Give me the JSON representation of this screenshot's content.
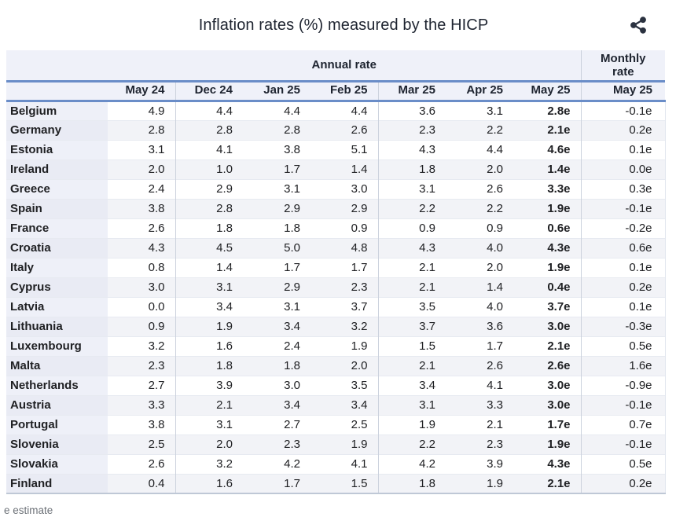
{
  "header": {
    "title": "Inflation rates (%) measured by the HICP"
  },
  "table": {
    "annual_group_label": "Annual rate",
    "monthly_group_label": "Monthly rate",
    "month_columns": [
      "May 24",
      "Dec 24",
      "Jan 25",
      "Feb 25",
      "Mar 25",
      "Apr 25",
      "May 25"
    ],
    "monthly_column": "May 25"
  },
  "footnote": "e estimate",
  "colors": {
    "accent_line": "#6a8dc8",
    "header_bg": "#eff1f9",
    "country_col_bg": "#eef0f8",
    "row_alt_bg": "#f2f3f7",
    "divider": "#ccd2dd",
    "icon": "#2b3240",
    "title_text": "#1e2430",
    "footnote_text": "#6d7278"
  },
  "chart_data": {
    "type": "table",
    "title": "Inflation rates (%) measured by the HICP",
    "column_groups": [
      "Annual rate",
      "Monthly rate"
    ],
    "columns": [
      "May 24",
      "Dec 24",
      "Jan 25",
      "Feb 25",
      "Mar 25",
      "Apr 25",
      "May 25"
    ],
    "monthly_column": "May 25",
    "footnote": "e estimate",
    "rows": [
      {
        "country": "Belgium",
        "annual": [
          "4.9",
          "4.4",
          "4.4",
          "4.4",
          "3.6",
          "3.1",
          "2.8e"
        ],
        "monthly": "-0.1e"
      },
      {
        "country": "Germany",
        "annual": [
          "2.8",
          "2.8",
          "2.8",
          "2.6",
          "2.3",
          "2.2",
          "2.1e"
        ],
        "monthly": "0.2e"
      },
      {
        "country": "Estonia",
        "annual": [
          "3.1",
          "4.1",
          "3.8",
          "5.1",
          "4.3",
          "4.4",
          "4.6e"
        ],
        "monthly": "0.1e"
      },
      {
        "country": "Ireland",
        "annual": [
          "2.0",
          "1.0",
          "1.7",
          "1.4",
          "1.8",
          "2.0",
          "1.4e"
        ],
        "monthly": "0.0e"
      },
      {
        "country": "Greece",
        "annual": [
          "2.4",
          "2.9",
          "3.1",
          "3.0",
          "3.1",
          "2.6",
          "3.3e"
        ],
        "monthly": "0.3e"
      },
      {
        "country": "Spain",
        "annual": [
          "3.8",
          "2.8",
          "2.9",
          "2.9",
          "2.2",
          "2.2",
          "1.9e"
        ],
        "monthly": "-0.1e"
      },
      {
        "country": "France",
        "annual": [
          "2.6",
          "1.8",
          "1.8",
          "0.9",
          "0.9",
          "0.9",
          "0.6e"
        ],
        "monthly": "-0.2e"
      },
      {
        "country": "Croatia",
        "annual": [
          "4.3",
          "4.5",
          "5.0",
          "4.8",
          "4.3",
          "4.0",
          "4.3e"
        ],
        "monthly": "0.6e"
      },
      {
        "country": "Italy",
        "annual": [
          "0.8",
          "1.4",
          "1.7",
          "1.7",
          "2.1",
          "2.0",
          "1.9e"
        ],
        "monthly": "0.1e"
      },
      {
        "country": "Cyprus",
        "annual": [
          "3.0",
          "3.1",
          "2.9",
          "2.3",
          "2.1",
          "1.4",
          "0.4e"
        ],
        "monthly": "0.2e"
      },
      {
        "country": "Latvia",
        "annual": [
          "0.0",
          "3.4",
          "3.1",
          "3.7",
          "3.5",
          "4.0",
          "3.7e"
        ],
        "monthly": "0.1e"
      },
      {
        "country": "Lithuania",
        "annual": [
          "0.9",
          "1.9",
          "3.4",
          "3.2",
          "3.7",
          "3.6",
          "3.0e"
        ],
        "monthly": "-0.3e"
      },
      {
        "country": "Luxembourg",
        "annual": [
          "3.2",
          "1.6",
          "2.4",
          "1.9",
          "1.5",
          "1.7",
          "2.1e"
        ],
        "monthly": "0.5e"
      },
      {
        "country": "Malta",
        "annual": [
          "2.3",
          "1.8",
          "1.8",
          "2.0",
          "2.1",
          "2.6",
          "2.6e"
        ],
        "monthly": "1.6e"
      },
      {
        "country": "Netherlands",
        "annual": [
          "2.7",
          "3.9",
          "3.0",
          "3.5",
          "3.4",
          "4.1",
          "3.0e"
        ],
        "monthly": "-0.9e"
      },
      {
        "country": "Austria",
        "annual": [
          "3.3",
          "2.1",
          "3.4",
          "3.4",
          "3.1",
          "3.3",
          "3.0e"
        ],
        "monthly": "-0.1e"
      },
      {
        "country": "Portugal",
        "annual": [
          "3.8",
          "3.1",
          "2.7",
          "2.5",
          "1.9",
          "2.1",
          "1.7e"
        ],
        "monthly": "0.7e"
      },
      {
        "country": "Slovenia",
        "annual": [
          "2.5",
          "2.0",
          "2.3",
          "1.9",
          "2.2",
          "2.3",
          "1.9e"
        ],
        "monthly": "-0.1e"
      },
      {
        "country": "Slovakia",
        "annual": [
          "2.6",
          "3.2",
          "4.2",
          "4.1",
          "4.2",
          "3.9",
          "4.3e"
        ],
        "monthly": "0.5e"
      },
      {
        "country": "Finland",
        "annual": [
          "0.4",
          "1.6",
          "1.7",
          "1.5",
          "1.8",
          "1.9",
          "2.1e"
        ],
        "monthly": "0.2e"
      }
    ]
  }
}
